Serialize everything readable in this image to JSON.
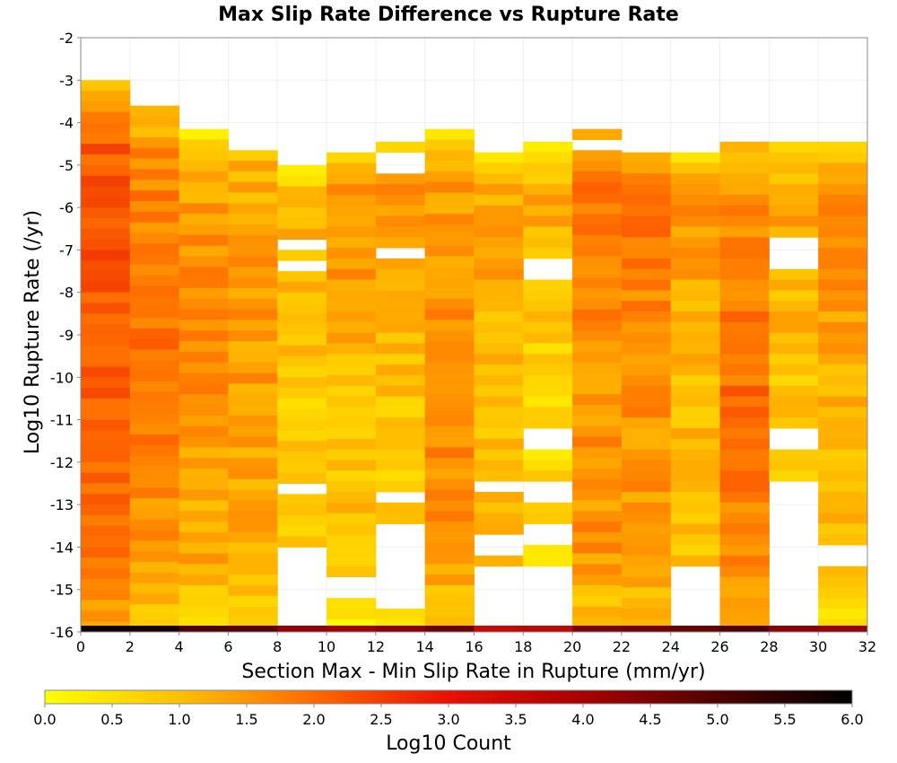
{
  "chart_data": {
    "type": "heatmap",
    "title": "Max Slip Rate Difference vs Rupture Rate",
    "xlabel": "Section Max - Min Slip Rate in Rupture (mm/yr)",
    "ylabel": "Log10 Rupture Rate (/yr)",
    "xlim": [
      0,
      32
    ],
    "ylim": [
      -16,
      -2
    ],
    "x_ticks": [
      "0",
      "2",
      "4",
      "6",
      "8",
      "10",
      "12",
      "14",
      "16",
      "18",
      "20",
      "22",
      "24",
      "26",
      "28",
      "30",
      "32"
    ],
    "y_ticks": [
      "-2",
      "-3",
      "-4",
      "-5",
      "-6",
      "-7",
      "-8",
      "-9",
      "-10",
      "-11",
      "-12",
      "-13",
      "-14",
      "-15",
      "-16"
    ],
    "x_bin_width": 2,
    "y_bin_height": 0.25,
    "y_bottom_bin_height": 0.15,
    "colorbar": {
      "label": "Log10 Count",
      "range": [
        0,
        6
      ],
      "ticks": [
        "0.0",
        "0.5",
        "1.0",
        "1.5",
        "2.0",
        "2.5",
        "3.0",
        "3.5",
        "4.0",
        "4.5",
        "5.0",
        "5.5",
        "6.0"
      ],
      "stops": [
        {
          "v": 0.0,
          "color": "#ffff00"
        },
        {
          "v": 1.0,
          "color": "#ffc000"
        },
        {
          "v": 2.0,
          "color": "#ff6a00"
        },
        {
          "v": 3.0,
          "color": "#e81000"
        },
        {
          "v": 4.0,
          "color": "#a80000"
        },
        {
          "v": 5.0,
          "color": "#500000"
        },
        {
          "v": 6.0,
          "color": "#000000"
        }
      ]
    },
    "columns": [
      {
        "x0": 0,
        "top": -3.0,
        "holes": [],
        "base": 2.0,
        "peak_y": -6.5,
        "peak": 2.2,
        "amp": 0.35,
        "bottom_row": 5.8
      },
      {
        "x0": 2,
        "top": -3.6,
        "holes": [],
        "base": 1.6,
        "peak_y": -8.5,
        "peak": 1.9,
        "amp": 0.35,
        "bottom_row": 5.7
      },
      {
        "x0": 4,
        "top": -4.15,
        "holes": [
          [
            -3.85,
            -4.15
          ]
        ],
        "base": 1.3,
        "peak_y": -9.0,
        "peak": 1.6,
        "amp": 0.35,
        "bottom_row": 5.0
      },
      {
        "x0": 6,
        "top": -4.15,
        "holes": [
          [
            -4.15,
            -4.7
          ]
        ],
        "base": 1.2,
        "peak_y": -9.0,
        "peak": 1.45,
        "amp": 0.35,
        "bottom_row": 4.9
      },
      {
        "x0": 8,
        "top": -5.0,
        "holes": [
          [
            -6.75,
            -6.95
          ],
          [
            -7.15,
            -7.4
          ],
          [
            -12.6,
            -12.8
          ],
          [
            -14.05,
            -16.0
          ]
        ],
        "base": 0.8,
        "peak_y": -6.0,
        "peak": 1.2,
        "amp": 0.35,
        "bottom_row": 4.2
      },
      {
        "x0": 10,
        "top": -4.7,
        "holes": [
          [
            -14.75,
            -15.25
          ]
        ],
        "base": 0.95,
        "peak_y": -6.0,
        "peak": 1.55,
        "amp": 0.35,
        "bottom_row": 4.1
      },
      {
        "x0": 12,
        "top": -4.45,
        "holes": [
          [
            -4.7,
            -5.25
          ],
          [
            -6.9,
            -7.1
          ],
          [
            -12.8,
            -13.05
          ],
          [
            -13.55,
            -15.55
          ]
        ],
        "base": 0.9,
        "peak_y": -6.0,
        "peak": 1.45,
        "amp": 0.35,
        "bottom_row": 4.3
      },
      {
        "x0": 14,
        "top": -4.15,
        "holes": [],
        "base": 1.4,
        "peak_y": -10.0,
        "peak": 1.7,
        "amp": 0.35,
        "bottom_row": 4.7
      },
      {
        "x0": 16,
        "top": -4.7,
        "holes": [
          [
            -12.55,
            -12.75
          ],
          [
            -13.8,
            -14.25
          ],
          [
            -14.55,
            -16.0
          ]
        ],
        "base": 1.0,
        "peak_y": -6.0,
        "peak": 1.35,
        "amp": 0.35,
        "bottom_row": 3.5
      },
      {
        "x0": 18,
        "top": -4.45,
        "holes": [
          [
            -7.25,
            -7.75
          ],
          [
            -11.25,
            -11.75
          ],
          [
            -12.45,
            -13.05
          ],
          [
            -13.5,
            -14.05
          ],
          [
            -14.45,
            -16.0
          ]
        ],
        "base": 0.6,
        "peak_y": -6.0,
        "peak": 1.2,
        "amp": 0.35,
        "bottom_row": 3.6
      },
      {
        "x0": 20,
        "top": -4.15,
        "holes": [
          [
            -4.45,
            -4.7
          ]
        ],
        "base": 1.5,
        "peak_y": -6.0,
        "peak": 1.85,
        "amp": 0.35,
        "bottom_row": 4.5
      },
      {
        "x0": 22,
        "top": -4.7,
        "holes": [],
        "base": 1.5,
        "peak_y": -6.0,
        "peak": 1.85,
        "amp": 0.35,
        "bottom_row": 4.6
      },
      {
        "x0": 24,
        "top": -4.7,
        "holes": [
          [
            -14.4,
            -16.0
          ]
        ],
        "base": 1.0,
        "peak_y": -6.0,
        "peak": 1.5,
        "amp": 0.35,
        "bottom_row": 4.7
      },
      {
        "x0": 26,
        "top": -4.45,
        "holes": [],
        "base": 1.6,
        "peak_y": -10.5,
        "peak": 1.95,
        "amp": 0.35,
        "bottom_row": 5.0
      },
      {
        "x0": 28,
        "top": -4.45,
        "holes": [
          [
            -6.75,
            -7.55
          ],
          [
            -11.25,
            -11.75
          ],
          [
            -12.45,
            -16.0
          ]
        ],
        "base": 0.9,
        "peak_y": -6.0,
        "peak": 1.3,
        "amp": 0.35,
        "bottom_row": 4.3
      },
      {
        "x0": 30,
        "top": -4.45,
        "holes": [
          [
            -14.05,
            -14.35
          ],
          [
            -15.35,
            -15.55
          ]
        ],
        "base": 1.1,
        "peak_y": -6.0,
        "peak": 1.6,
        "amp": 0.35,
        "bottom_row": 4.2
      }
    ]
  }
}
